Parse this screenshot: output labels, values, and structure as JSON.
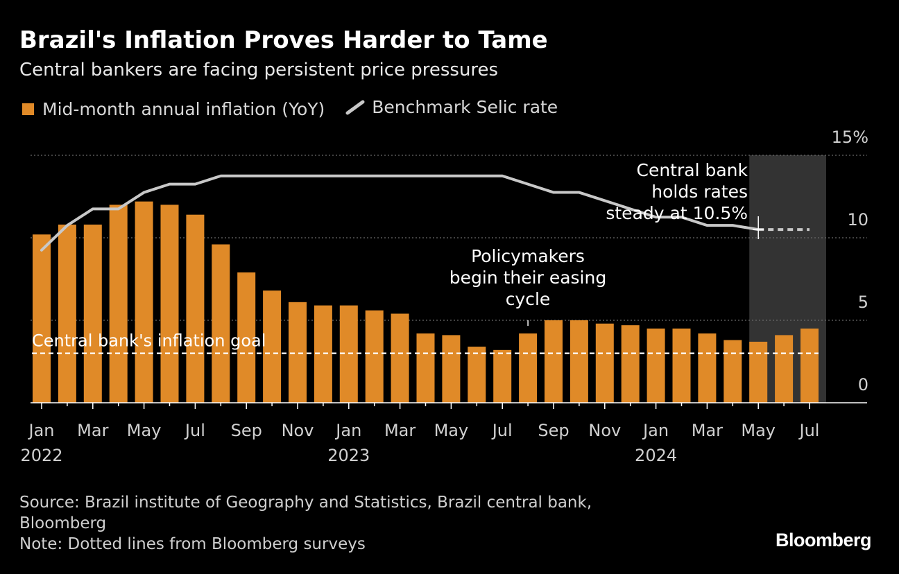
{
  "title": "Brazil's Inflation Proves Harder to Tame",
  "subtitle": "Central bankers are facing persistent price pressures",
  "legend": {
    "bars": "Mid-month annual inflation (YoY)",
    "line": "Benchmark Selic rate"
  },
  "colors": {
    "bar": "#e08a28",
    "line": "#c8c8c8",
    "goal": "#ffffff",
    "shade": "#333333",
    "grid": "#6a6a6a"
  },
  "chart_data": {
    "type": "bar",
    "categories": [
      "Jan 2022",
      "Feb 2022",
      "Mar 2022",
      "Apr 2022",
      "May 2022",
      "Jun 2022",
      "Jul 2022",
      "Aug 2022",
      "Sep 2022",
      "Oct 2022",
      "Nov 2022",
      "Dec 2022",
      "Jan 2023",
      "Feb 2023",
      "Mar 2023",
      "Apr 2023",
      "May 2023",
      "Jun 2023",
      "Jul 2023",
      "Aug 2023",
      "Sep 2023",
      "Oct 2023",
      "Nov 2023",
      "Dec 2023",
      "Jan 2024",
      "Feb 2024",
      "Mar 2024",
      "Apr 2024",
      "May 2024",
      "Jun 2024",
      "Jul 2024"
    ],
    "series": [
      {
        "name": "Mid-month annual inflation (YoY)",
        "type": "bar",
        "values": [
          10.2,
          10.8,
          10.8,
          12.0,
          12.2,
          12.0,
          11.4,
          9.6,
          7.9,
          6.8,
          6.1,
          5.9,
          5.9,
          5.6,
          5.4,
          4.2,
          4.1,
          3.4,
          3.2,
          4.2,
          5.0,
          5.0,
          4.8,
          4.7,
          4.5,
          4.5,
          4.2,
          3.8,
          3.7,
          4.1,
          4.5
        ]
      },
      {
        "name": "Benchmark Selic rate",
        "type": "line",
        "values": [
          9.25,
          10.75,
          11.75,
          11.75,
          12.75,
          13.25,
          13.25,
          13.75,
          13.75,
          13.75,
          13.75,
          13.75,
          13.75,
          13.75,
          13.75,
          13.75,
          13.75,
          13.75,
          13.75,
          13.25,
          12.75,
          12.75,
          12.25,
          11.75,
          11.25,
          11.25,
          10.75,
          10.75,
          10.5,
          10.5,
          10.5
        ],
        "projected_from_index": 29
      }
    ],
    "reference_line": {
      "label": "Central bank's inflation goal",
      "value": 3.0
    },
    "highlight_range": {
      "from_index": 28,
      "to_index": 30
    },
    "annotations": [
      {
        "lines": [
          "Central bank",
          "holds rates",
          "steady at 10.5%"
        ],
        "category": "May 2024"
      },
      {
        "lines": [
          "Policymakers",
          "begin their easing",
          "cycle"
        ],
        "category": "Aug 2023"
      }
    ],
    "y_ticks": [
      {
        "value": 15,
        "label": "15%"
      },
      {
        "value": 10,
        "label": "10"
      },
      {
        "value": 5,
        "label": "5"
      },
      {
        "value": 0,
        "label": "0"
      }
    ],
    "x_ticks": [
      {
        "index": 0,
        "label": "Jan",
        "year": "2022"
      },
      {
        "index": 2,
        "label": "Mar"
      },
      {
        "index": 4,
        "label": "May"
      },
      {
        "index": 6,
        "label": "Jul"
      },
      {
        "index": 8,
        "label": "Sep"
      },
      {
        "index": 10,
        "label": "Nov"
      },
      {
        "index": 12,
        "label": "Jan",
        "year": "2023"
      },
      {
        "index": 14,
        "label": "Mar"
      },
      {
        "index": 16,
        "label": "May"
      },
      {
        "index": 18,
        "label": "Jul"
      },
      {
        "index": 20,
        "label": "Sep"
      },
      {
        "index": 22,
        "label": "Nov"
      },
      {
        "index": 24,
        "label": "Jan",
        "year": "2024"
      },
      {
        "index": 26,
        "label": "Mar"
      },
      {
        "index": 28,
        "label": "May"
      },
      {
        "index": 30,
        "label": "Jul"
      }
    ],
    "ylim": [
      0,
      15
    ],
    "grid": true
  },
  "footer": {
    "source_line1": "Source: Brazil institute of Geography and Statistics, Brazil central bank,",
    "source_line2": "Bloomberg",
    "note": "Note: Dotted lines from Bloomberg surveys"
  },
  "brand": "Bloomberg"
}
